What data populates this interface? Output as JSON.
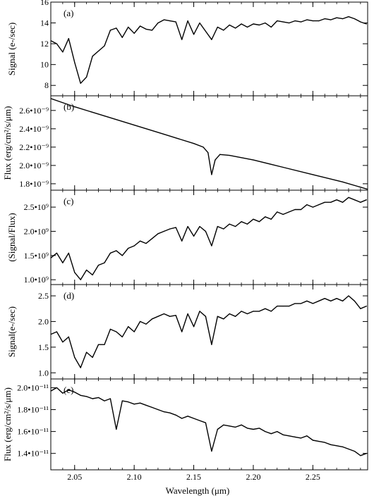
{
  "figure": {
    "xlabel": "Wavelength (μm)"
  },
  "chart_data": [
    {
      "type": "line",
      "tag": "(a)",
      "ylabel": "Signal (e-/sec)",
      "xlim": [
        2.03,
        2.296
      ],
      "ylim": [
        7,
        16
      ],
      "xticks": [
        2.05,
        2.1,
        2.15,
        2.2,
        2.25
      ],
      "yticks": [
        8,
        10,
        12,
        14,
        16
      ],
      "ytick_labels": [
        "8",
        "10",
        "12",
        "14",
        "16"
      ],
      "x": [
        2.03,
        2.035,
        2.04,
        2.045,
        2.05,
        2.055,
        2.06,
        2.065,
        2.07,
        2.075,
        2.08,
        2.085,
        2.09,
        2.095,
        2.1,
        2.105,
        2.11,
        2.115,
        2.12,
        2.125,
        2.13,
        2.135,
        2.14,
        2.145,
        2.15,
        2.155,
        2.16,
        2.165,
        2.17,
        2.175,
        2.18,
        2.185,
        2.19,
        2.195,
        2.2,
        2.205,
        2.21,
        2.215,
        2.22,
        2.225,
        2.23,
        2.235,
        2.24,
        2.245,
        2.25,
        2.255,
        2.26,
        2.265,
        2.27,
        2.275,
        2.28,
        2.285,
        2.29,
        2.295
      ],
      "y": [
        12.3,
        12.0,
        11.2,
        12.5,
        10.2,
        8.2,
        8.8,
        10.8,
        11.3,
        11.8,
        13.3,
        13.5,
        12.6,
        13.6,
        13.0,
        13.7,
        13.4,
        13.3,
        14.0,
        14.3,
        14.2,
        14.1,
        12.4,
        14.2,
        12.9,
        14.0,
        13.2,
        12.4,
        13.6,
        13.3,
        13.8,
        13.5,
        13.9,
        13.6,
        13.9,
        13.8,
        14.0,
        13.6,
        14.2,
        14.1,
        14.0,
        14.2,
        14.1,
        14.3,
        14.2,
        14.2,
        14.4,
        14.3,
        14.5,
        14.4,
        14.6,
        14.4,
        14.1,
        13.9
      ]
    },
    {
      "type": "line",
      "tag": "(b)",
      "ylabel": "Flux (erg/cm²/s/μm)",
      "xlim": [
        2.03,
        2.296
      ],
      "ylim": [
        1.73e-09,
        2.76e-09
      ],
      "xticks": [
        2.05,
        2.1,
        2.15,
        2.2,
        2.25
      ],
      "yticks": [
        1.8e-09,
        2e-09,
        2.2e-09,
        2.4e-09,
        2.6e-09
      ],
      "ytick_labels": [
        "1.8•10⁻⁹",
        "2.0•10⁻⁹",
        "2.2•10⁻⁹",
        "2.4•10⁻⁹",
        "2.6•10⁻⁹"
      ],
      "x": [
        2.03,
        2.05,
        2.075,
        2.1,
        2.125,
        2.15,
        2.158,
        2.162,
        2.165,
        2.168,
        2.172,
        2.18,
        2.2,
        2.225,
        2.25,
        2.275,
        2.296
      ],
      "y": [
        2.73e-09,
        2.64e-09,
        2.54e-09,
        2.44e-09,
        2.34e-09,
        2.24e-09,
        2.2e-09,
        2.14e-09,
        1.9e-09,
        2.06e-09,
        2.12e-09,
        2.11e-09,
        2.06e-09,
        1.98e-09,
        1.9e-09,
        1.82e-09,
        1.74e-09
      ]
    },
    {
      "type": "line",
      "tag": "(c)",
      "ylabel": "(Signal/Flux)",
      "xlim": [
        2.03,
        2.296
      ],
      "ylim": [
        900000000.0,
        2850000000.0
      ],
      "xticks": [
        2.05,
        2.1,
        2.15,
        2.2,
        2.25
      ],
      "yticks": [
        1000000000.0,
        1500000000.0,
        2000000000.0,
        2500000000.0
      ],
      "ytick_labels": [
        "1.0•10⁹",
        "1.5•10⁹",
        "2.0•10⁹",
        "2.5•10⁹"
      ],
      "x": [
        2.03,
        2.035,
        2.04,
        2.045,
        2.05,
        2.055,
        2.06,
        2.065,
        2.07,
        2.075,
        2.08,
        2.085,
        2.09,
        2.095,
        2.1,
        2.105,
        2.11,
        2.115,
        2.12,
        2.125,
        2.13,
        2.135,
        2.14,
        2.145,
        2.15,
        2.155,
        2.16,
        2.165,
        2.17,
        2.175,
        2.18,
        2.185,
        2.19,
        2.195,
        2.2,
        2.205,
        2.21,
        2.215,
        2.22,
        2.225,
        2.23,
        2.235,
        2.24,
        2.245,
        2.25,
        2.255,
        2.26,
        2.265,
        2.27,
        2.275,
        2.28,
        2.285,
        2.29,
        2.295
      ],
      "y": [
        1450000000.0,
        1550000000.0,
        1350000000.0,
        1550000000.0,
        1150000000.0,
        1000000000.0,
        1200000000.0,
        1100000000.0,
        1300000000.0,
        1350000000.0,
        1550000000.0,
        1600000000.0,
        1500000000.0,
        1650000000.0,
        1700000000.0,
        1800000000.0,
        1750000000.0,
        1850000000.0,
        1950000000.0,
        2000000000.0,
        2050000000.0,
        2080000000.0,
        1800000000.0,
        2100000000.0,
        1900000000.0,
        2100000000.0,
        2000000000.0,
        1700000000.0,
        2100000000.0,
        2050000000.0,
        2150000000.0,
        2100000000.0,
        2200000000.0,
        2150000000.0,
        2250000000.0,
        2200000000.0,
        2300000000.0,
        2250000000.0,
        2400000000.0,
        2350000000.0,
        2400000000.0,
        2450000000.0,
        2450000000.0,
        2550000000.0,
        2500000000.0,
        2550000000.0,
        2600000000.0,
        2600000000.0,
        2650000000.0,
        2600000000.0,
        2700000000.0,
        2650000000.0,
        2600000000.0,
        2650000000.0
      ]
    },
    {
      "type": "line",
      "tag": "(d)",
      "ylabel": "Signal(e-/sec)",
      "xlim": [
        2.03,
        2.296
      ],
      "ylim": [
        0.88,
        2.72
      ],
      "xticks": [
        2.05,
        2.1,
        2.15,
        2.2,
        2.25
      ],
      "yticks": [
        1.0,
        1.5,
        2.0,
        2.5
      ],
      "ytick_labels": [
        "1.0",
        "1.5",
        "2.0",
        "2.5"
      ],
      "x": [
        2.03,
        2.035,
        2.04,
        2.045,
        2.05,
        2.055,
        2.06,
        2.065,
        2.07,
        2.075,
        2.08,
        2.085,
        2.09,
        2.095,
        2.1,
        2.105,
        2.11,
        2.115,
        2.12,
        2.125,
        2.13,
        2.135,
        2.14,
        2.145,
        2.15,
        2.155,
        2.16,
        2.165,
        2.17,
        2.175,
        2.18,
        2.185,
        2.19,
        2.195,
        2.2,
        2.205,
        2.21,
        2.215,
        2.22,
        2.225,
        2.23,
        2.235,
        2.24,
        2.245,
        2.25,
        2.255,
        2.26,
        2.265,
        2.27,
        2.275,
        2.28,
        2.285,
        2.29,
        2.295
      ],
      "y": [
        1.75,
        1.8,
        1.6,
        1.7,
        1.3,
        1.1,
        1.4,
        1.3,
        1.55,
        1.55,
        1.85,
        1.8,
        1.7,
        1.9,
        1.8,
        2.0,
        1.95,
        2.05,
        2.1,
        2.15,
        2.1,
        2.12,
        1.8,
        2.15,
        1.9,
        2.2,
        2.1,
        1.55,
        2.1,
        2.05,
        2.15,
        2.1,
        2.2,
        2.15,
        2.2,
        2.2,
        2.25,
        2.2,
        2.3,
        2.3,
        2.3,
        2.35,
        2.35,
        2.4,
        2.35,
        2.4,
        2.45,
        2.4,
        2.45,
        2.4,
        2.5,
        2.4,
        2.25,
        2.3
      ]
    },
    {
      "type": "line",
      "tag": "(e)",
      "ylabel": "Flux (erg/cm²/s/μm)",
      "xlim": [
        2.03,
        2.296
      ],
      "ylim": [
        1.25e-11,
        2.08e-11
      ],
      "xticks": [
        2.05,
        2.1,
        2.15,
        2.2,
        2.25
      ],
      "xtick_labels": [
        "2.05",
        "2.10",
        "2.15",
        "2.20",
        "2.25"
      ],
      "yticks": [
        1.4e-11,
        1.6e-11,
        1.8e-11,
        2e-11
      ],
      "ytick_labels": [
        "1.4•10⁻¹¹",
        "1.6•10⁻¹¹",
        "1.8•10⁻¹¹",
        "2.0•10⁻¹¹"
      ],
      "x": [
        2.03,
        2.035,
        2.04,
        2.045,
        2.05,
        2.055,
        2.06,
        2.065,
        2.07,
        2.075,
        2.08,
        2.085,
        2.09,
        2.095,
        2.1,
        2.105,
        2.11,
        2.115,
        2.12,
        2.125,
        2.13,
        2.135,
        2.14,
        2.145,
        2.15,
        2.155,
        2.16,
        2.165,
        2.17,
        2.175,
        2.18,
        2.185,
        2.19,
        2.195,
        2.2,
        2.205,
        2.21,
        2.215,
        2.22,
        2.225,
        2.23,
        2.235,
        2.24,
        2.245,
        2.25,
        2.255,
        2.26,
        2.265,
        2.27,
        2.275,
        2.28,
        2.285,
        2.29,
        2.295
      ],
      "y": [
        1.97e-11,
        2e-11,
        1.95e-11,
        1.98e-11,
        1.96e-11,
        1.93e-11,
        1.92e-11,
        1.9e-11,
        1.91e-11,
        1.88e-11,
        1.9e-11,
        1.62e-11,
        1.88e-11,
        1.87e-11,
        1.85e-11,
        1.86e-11,
        1.84e-11,
        1.82e-11,
        1.8e-11,
        1.78e-11,
        1.77e-11,
        1.75e-11,
        1.72e-11,
        1.74e-11,
        1.72e-11,
        1.7e-11,
        1.68e-11,
        1.42e-11,
        1.62e-11,
        1.66e-11,
        1.65e-11,
        1.64e-11,
        1.66e-11,
        1.63e-11,
        1.62e-11,
        1.63e-11,
        1.6e-11,
        1.58e-11,
        1.6e-11,
        1.57e-11,
        1.56e-11,
        1.55e-11,
        1.54e-11,
        1.56e-11,
        1.52e-11,
        1.51e-11,
        1.5e-11,
        1.48e-11,
        1.47e-11,
        1.46e-11,
        1.44e-11,
        1.42e-11,
        1.38e-11,
        1.4e-11
      ]
    }
  ]
}
